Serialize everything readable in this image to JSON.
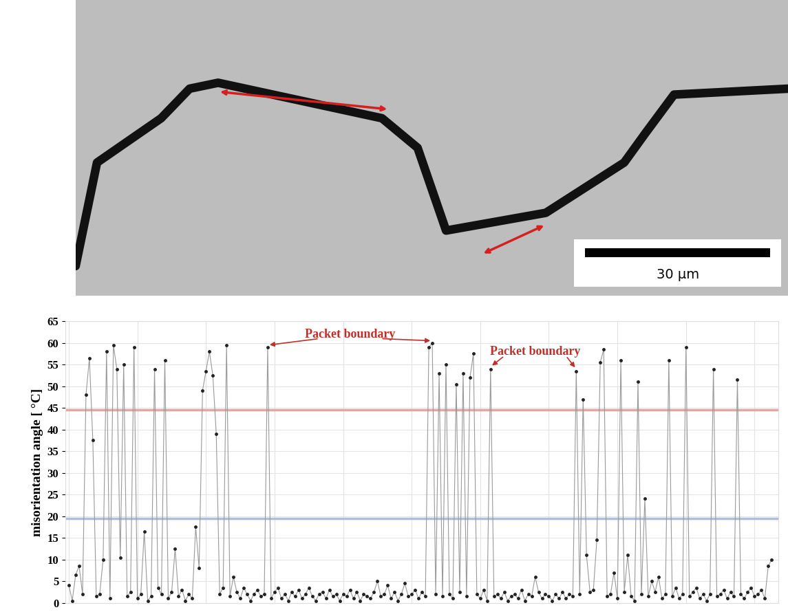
{
  "micrograph": {
    "scale_bar_label": "30 μm"
  },
  "chart_data": {
    "type": "line",
    "y_label": "misorientation angle [ °C]",
    "values": [
      4,
      0.5,
      6.5,
      8.5,
      2,
      48,
      56.5,
      37.5,
      1.5,
      2,
      10,
      58,
      1,
      59.5,
      54,
      10.5,
      55,
      1.5,
      2.5,
      59,
      1,
      2,
      16.5,
      0.5,
      1.5,
      54,
      3.5,
      2,
      56,
      1,
      2.5,
      12.5,
      1.5,
      3,
      0.5,
      2,
      1,
      17.5,
      8,
      49,
      53.5,
      58,
      52.5,
      39,
      2,
      3.5,
      59.5,
      1.5,
      6,
      2.5,
      1,
      3.5,
      2,
      0.5,
      2,
      3,
      1.5,
      2,
      59,
      1,
      2.5,
      3.5,
      1,
      2,
      0.5,
      2.5,
      1.5,
      3,
      1,
      2,
      3.5,
      1.5,
      0.5,
      2,
      2.5,
      1,
      3,
      1.5,
      2,
      0.5,
      2,
      1.5,
      3,
      1,
      2.5,
      0.5,
      2,
      1.5,
      1,
      2.5,
      5,
      1.5,
      2,
      4,
      1,
      2.5,
      0.5,
      2,
      4.5,
      1.5,
      2,
      3,
      1,
      2.5,
      1.5,
      59,
      60,
      2,
      53,
      1.5,
      55,
      2,
      1,
      50.5,
      2.5,
      53,
      1.5,
      52,
      57.5,
      2,
      1,
      3,
      0.5,
      54,
      1.5,
      2,
      1,
      2.5,
      0.5,
      1.5,
      2,
      1,
      3,
      0.5,
      2,
      1.5,
      6,
      2.5,
      1,
      2,
      1.5,
      0.5,
      2,
      1,
      2.5,
      1,
      2,
      1.5,
      53.5,
      2,
      47,
      11,
      2.5,
      3,
      14.5,
      55.5,
      58.5,
      1.5,
      2,
      7,
      1,
      56,
      2.5,
      11,
      1.5,
      0.5,
      51,
      2,
      24,
      1.5,
      5,
      2.5,
      6,
      1,
      2,
      56,
      1.5,
      3.5,
      1,
      2,
      59,
      1.5,
      2.5,
      3.5,
      1,
      2,
      0.5,
      2,
      54,
      1.5,
      2,
      3,
      1,
      2.5,
      1.5,
      51.5,
      2,
      1,
      2.5,
      3.5,
      1.5,
      2,
      3,
      1,
      8.5,
      10
    ],
    "color": "#9a9a9a",
    "marker": "o",
    "line_style": "solid",
    "xlim": [
      -1,
      207
    ],
    "xticks": [
      0,
      20,
      40,
      60,
      80,
      100,
      120,
      140,
      160,
      180,
      200
    ],
    "ylim": [
      0,
      65
    ],
    "yticks": [
      0,
      5,
      10,
      15,
      20,
      25,
      30,
      35,
      40,
      45,
      50,
      55,
      60,
      65
    ],
    "grid": true,
    "tick_labels": "y",
    "thresholds": [
      {
        "value": 44.5,
        "color": "#e8a3a3"
      },
      {
        "value": 19.5,
        "color": "#a9c0e2"
      }
    ],
    "annotations": [
      {
        "text": "Packet boundary",
        "x": 82,
        "y": 62,
        "targets": [
          58,
          106
        ]
      },
      {
        "text": "Packet boundary",
        "x": 136,
        "y": 58,
        "targets": [
          123,
          148
        ]
      }
    ]
  }
}
